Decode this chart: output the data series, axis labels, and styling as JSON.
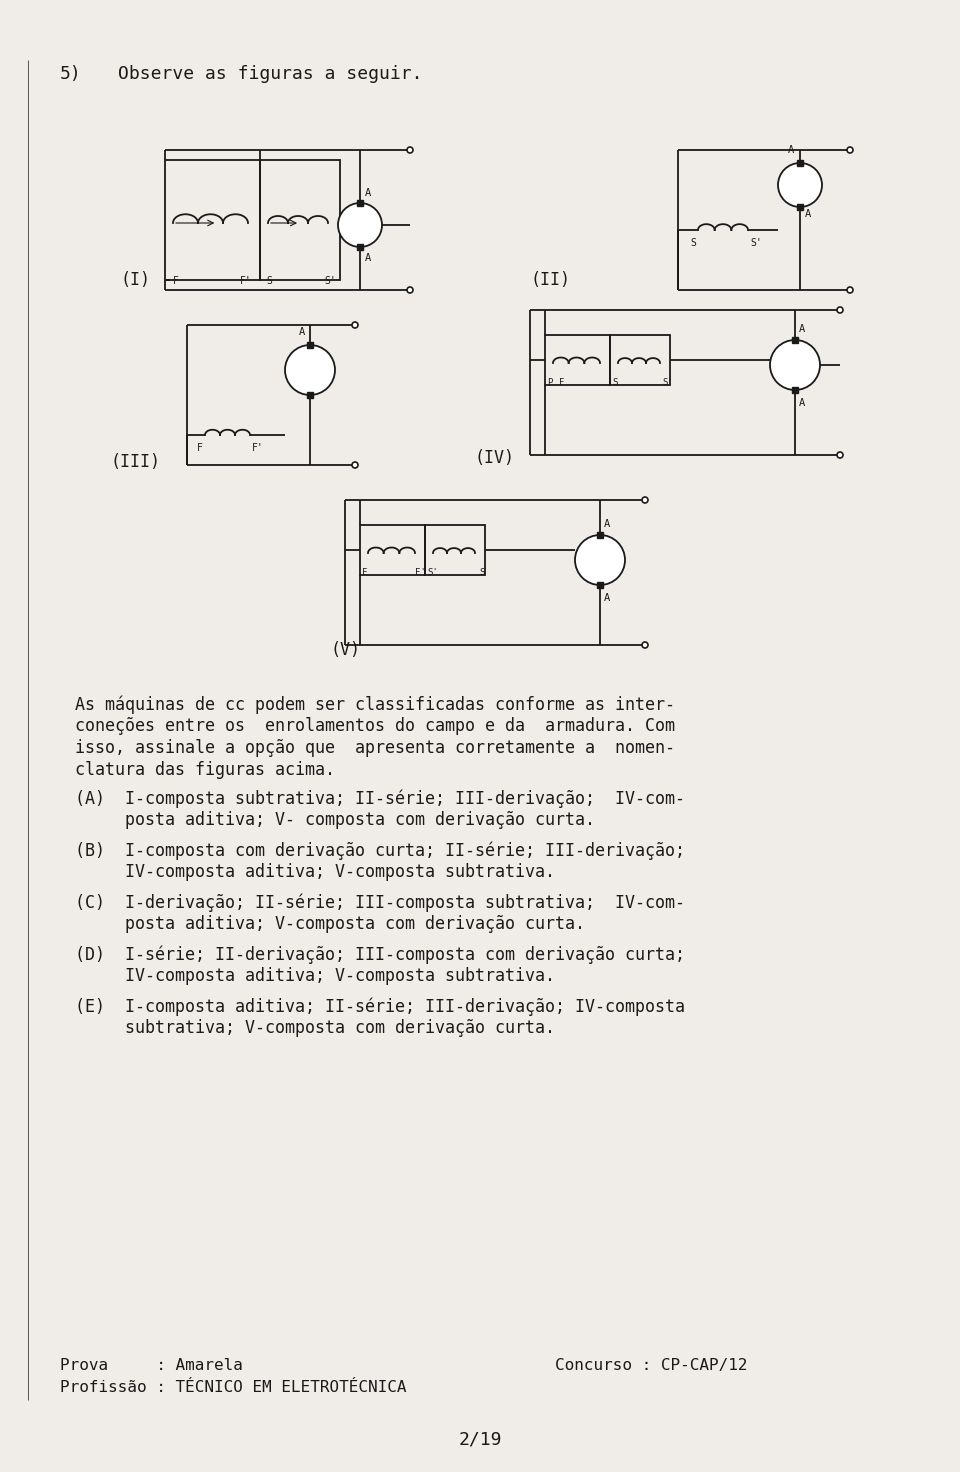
{
  "background_color": "#f0ede8",
  "text_color": "#1a1a1a",
  "font_family": "monospace",
  "figsize": [
    9.6,
    14.72
  ],
  "dpi": 100,
  "question_number": "5)",
  "question_text": "Observe as figuras a seguir.",
  "paragraph": "As máquinas de cc podem ser classificadas conforme as inter-\nconeções entre os  enrolamentos do campo e da  armadura. Com\nisso, assinale a opção que  apresenta corretamente a  nomen-\nclatura das figuras acima.",
  "options": [
    "(A)  I-composta subtrativa; II-série; III-derivação;  IV-com-\n     posta aditiva; V- composta com derivação curta.",
    "(B)  I-composta com derivação curta; II-série; III-derivação;\n     IV-composta aditiva; V-composta subtrativa.",
    "(C)  I-derivação; II-série; III-composta subtrativa;  IV-com-\n     posta aditiva; V-composta com derivação curta.",
    "(D)  I-série; II-derivação; III-composta com derivação curta;\n     IV-composta aditiva; V-composta subtrativa.",
    "(E)  I-composta aditiva; II-série; III-derivação; IV-composta\n     subtrativa; V-composta com derivação curta."
  ],
  "footer_left_line1": "Prova     : Amarela",
  "footer_left_line2": "Profissão : TÉCNICO EM ELETROTÉCNICA",
  "footer_right": "Concurso : CP-CAP/12",
  "page_number": "2/19"
}
